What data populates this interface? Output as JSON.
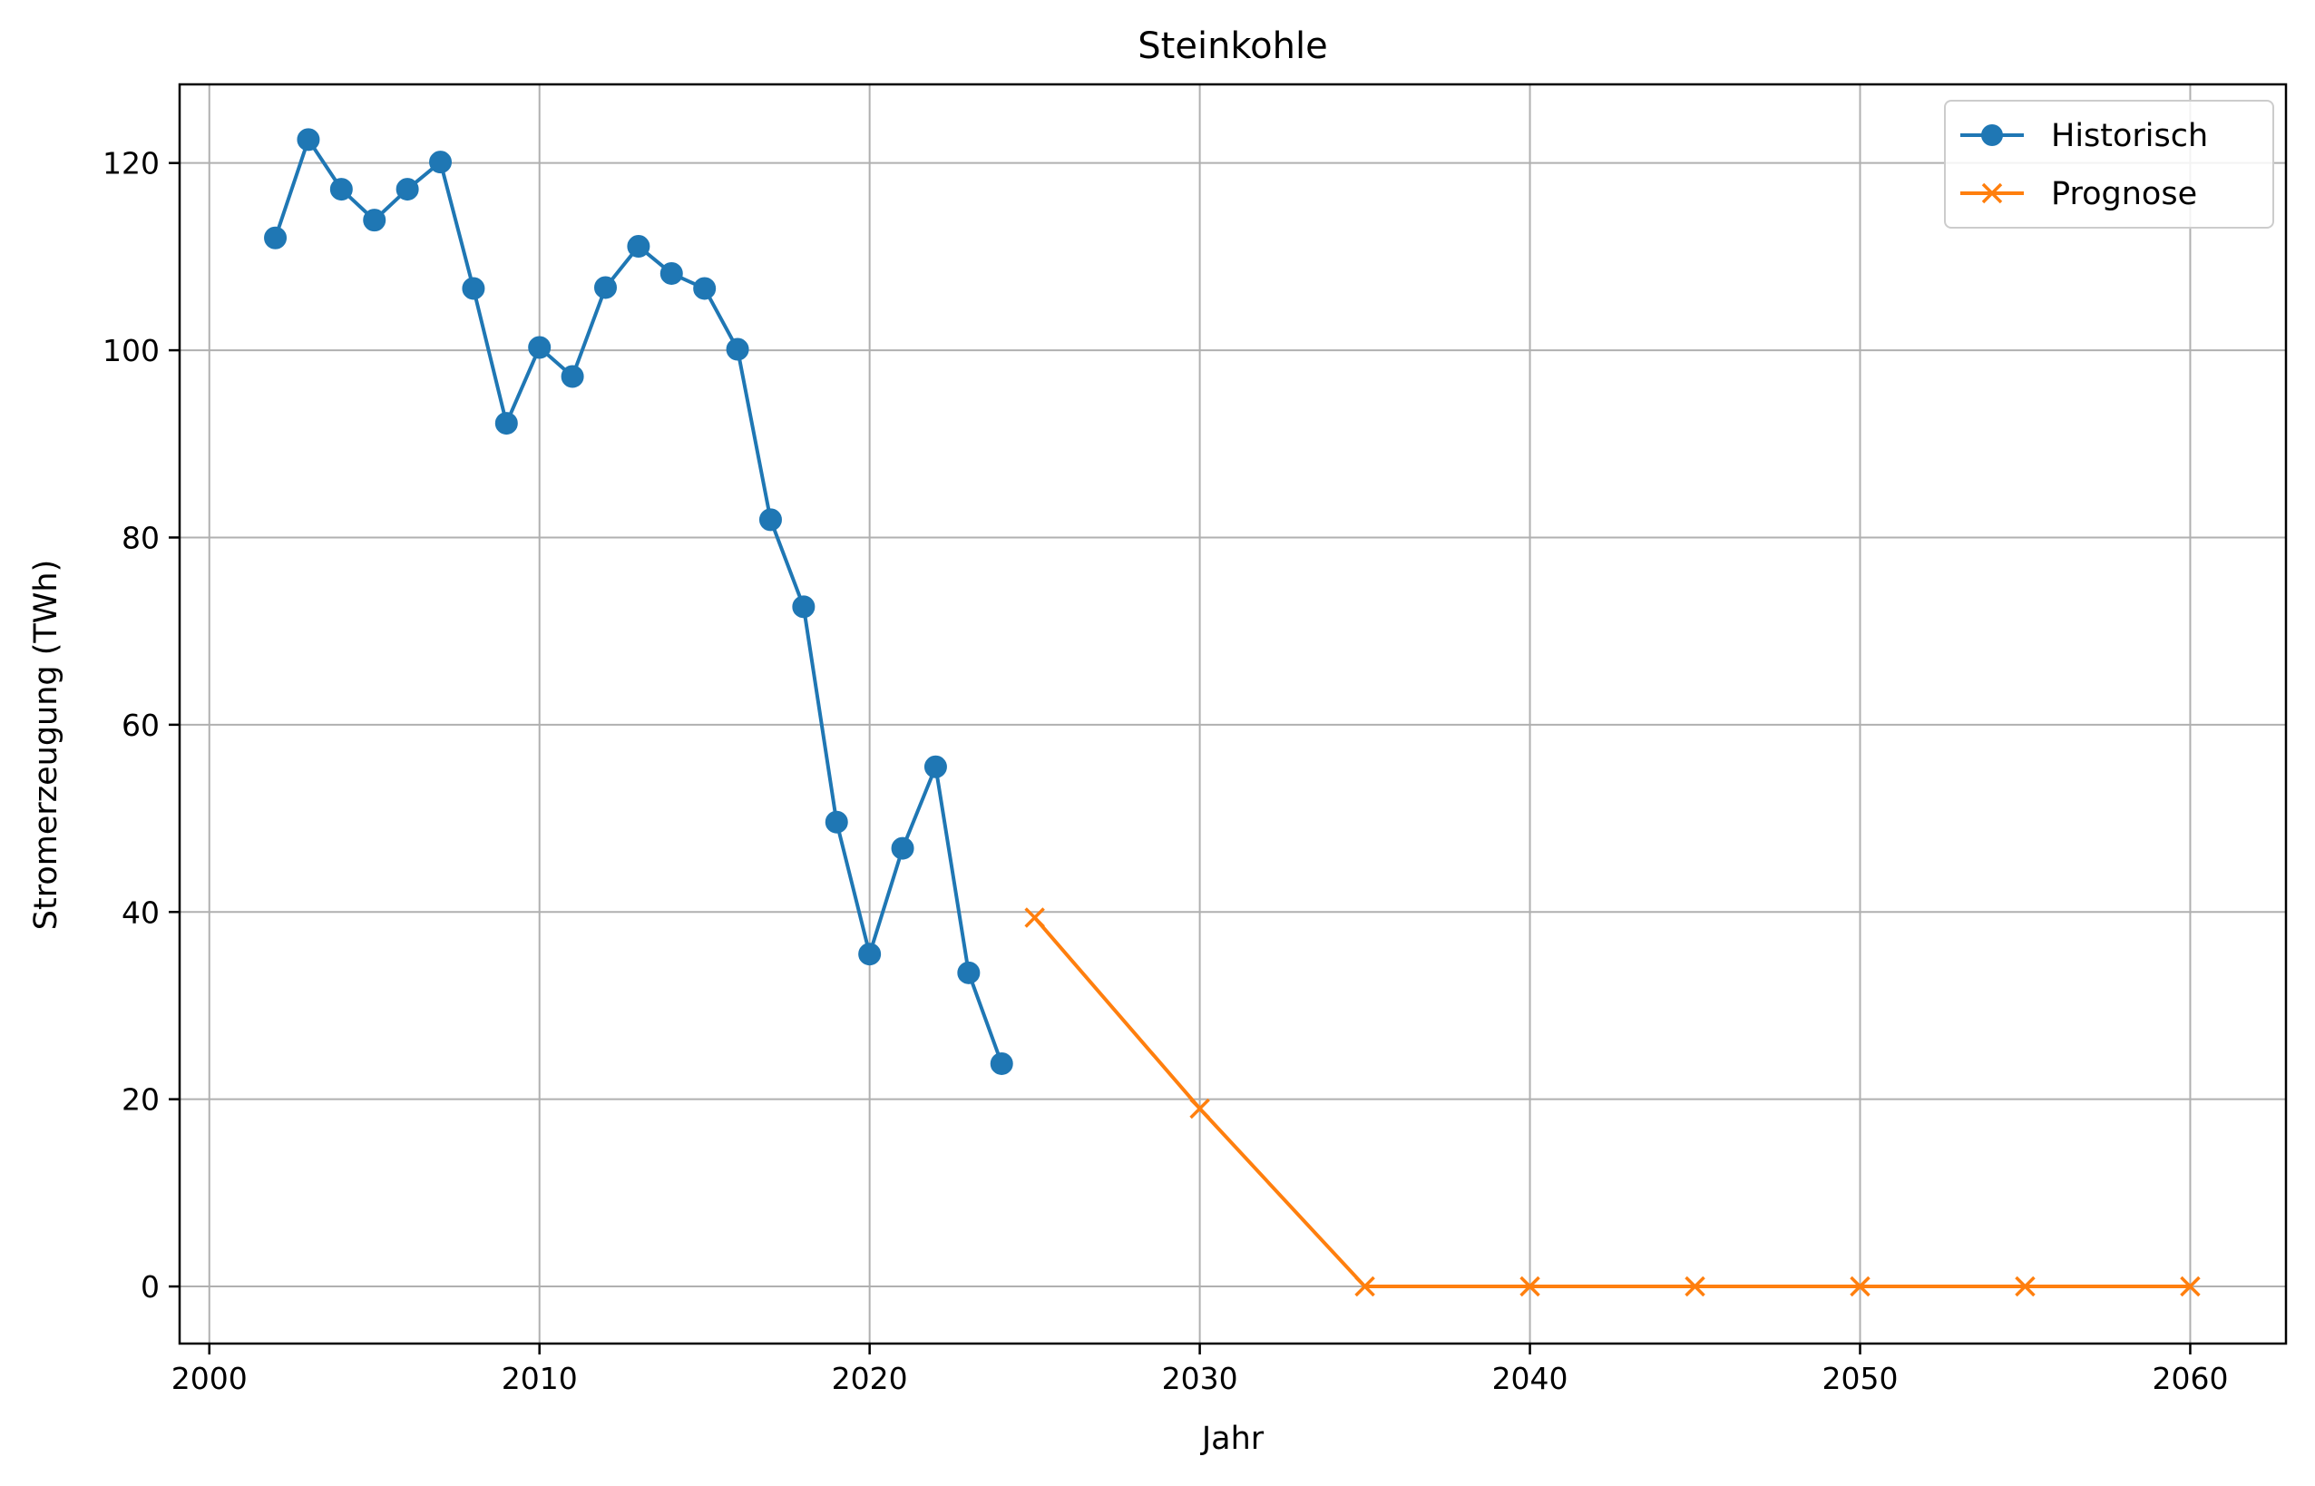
{
  "chart_data": {
    "type": "line",
    "title": "Steinkohle",
    "xlabel": "Jahr",
    "ylabel": "Stromerzeugung (TWh)",
    "xlim": [
      1999.1,
      2062.9
    ],
    "ylim": [
      -6.1,
      128.4
    ],
    "x_ticks": [
      2000,
      2010,
      2020,
      2030,
      2040,
      2050,
      2060
    ],
    "y_ticks": [
      0,
      20,
      40,
      60,
      80,
      100,
      120
    ],
    "grid": true,
    "legend_position": "top-right",
    "series": [
      {
        "name": "Historisch",
        "color": "#1f77b4",
        "marker": "circle",
        "x": [
          2002,
          2003,
          2004,
          2005,
          2006,
          2007,
          2008,
          2009,
          2010,
          2011,
          2012,
          2013,
          2014,
          2015,
          2016,
          2017,
          2018,
          2019,
          2020,
          2021,
          2022,
          2023,
          2024
        ],
        "y": [
          112.0,
          122.5,
          117.2,
          113.9,
          117.2,
          120.1,
          106.6,
          92.2,
          100.3,
          97.2,
          106.7,
          111.1,
          108.2,
          106.6,
          100.1,
          81.9,
          72.6,
          49.6,
          35.5,
          46.8,
          55.5,
          33.5,
          23.8
        ]
      },
      {
        "name": "Prognose",
        "color": "#ff7f0e",
        "marker": "x",
        "x": [
          2025,
          2030,
          2035,
          2040,
          2045,
          2050,
          2055,
          2060
        ],
        "y": [
          39.4,
          19.0,
          0.0,
          0.0,
          0.0,
          0.0,
          0.0,
          0.0
        ]
      }
    ]
  }
}
